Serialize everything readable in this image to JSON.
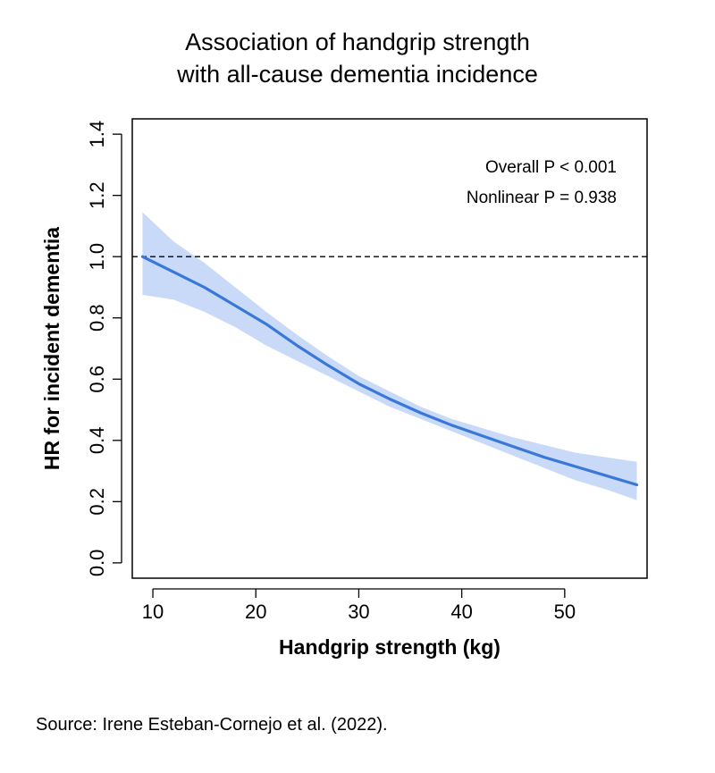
{
  "chart_data": {
    "type": "line",
    "title_line1": "Association of handgrip strength",
    "title_line2": "with all-cause dementia incidence",
    "xlabel": "Handgrip strength (kg)",
    "ylabel": "HR for incident dementia",
    "xlim": [
      8,
      58
    ],
    "ylim": [
      -0.05,
      1.45
    ],
    "xticks": [
      "10",
      "20",
      "30",
      "40",
      "50"
    ],
    "yticks": [
      "0.0",
      "0.2",
      "0.4",
      "0.6",
      "0.8",
      "1.0",
      "1.2",
      "1.4"
    ],
    "reference_line": 1.0,
    "annotations": [
      "Overall P < 0.001",
      "Nonlinear P = 0.938"
    ],
    "series": [
      {
        "name": "HR",
        "x": [
          9,
          12,
          15,
          18,
          21,
          24,
          27,
          30,
          33,
          36,
          39,
          42,
          45,
          48,
          51,
          54,
          57
        ],
        "y": [
          1.0,
          0.95,
          0.9,
          0.84,
          0.78,
          0.71,
          0.645,
          0.585,
          0.535,
          0.49,
          0.45,
          0.415,
          0.38,
          0.345,
          0.315,
          0.285,
          0.255
        ],
        "lower": [
          0.875,
          0.86,
          0.82,
          0.77,
          0.71,
          0.66,
          0.61,
          0.56,
          0.51,
          0.47,
          0.43,
          0.39,
          0.35,
          0.31,
          0.27,
          0.24,
          0.205
        ],
        "upper": [
          1.145,
          1.05,
          0.98,
          0.9,
          0.82,
          0.745,
          0.675,
          0.61,
          0.56,
          0.51,
          0.47,
          0.44,
          0.41,
          0.385,
          0.36,
          0.345,
          0.33
        ]
      }
    ]
  },
  "source": "Source: Irene Esteban-Cornejo et al. (2022).",
  "colors": {
    "line": "#3a78d8",
    "band": "#c8daf7",
    "axis": "#000000"
  }
}
